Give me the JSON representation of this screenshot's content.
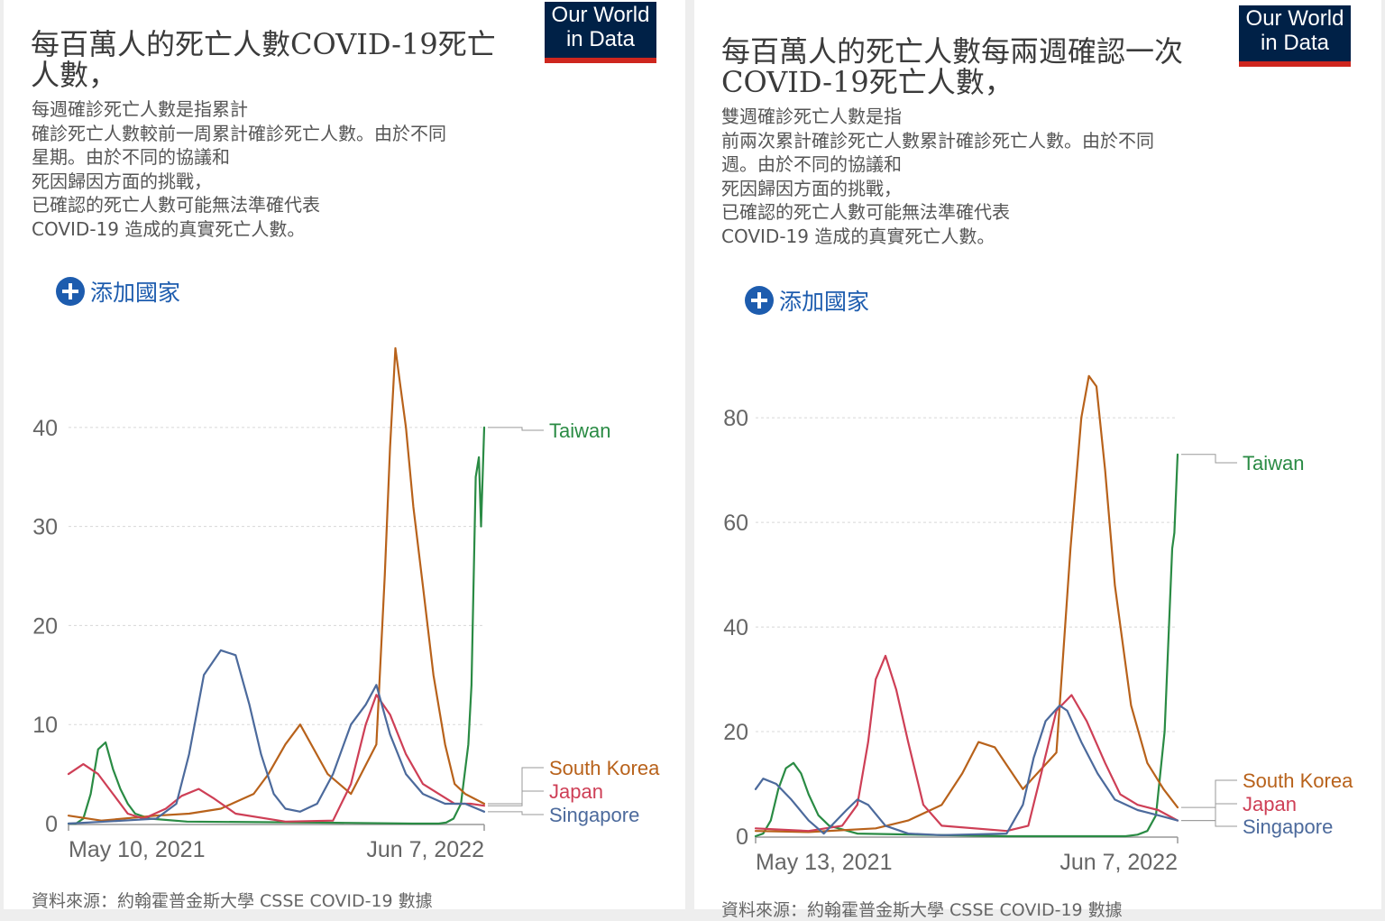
{
  "left": {
    "logo": [
      "Our World",
      "in Data"
    ],
    "title_lines": [
      "每百萬人的死亡人數COVID-19死亡",
      "人數，"
    ],
    "subtitle_lines": [
      "每週確診死亡人數是指累計",
      "確診死亡人數較前一周累計確診死亡人數。由於不同",
      "星期。由於不同的協議和",
      "死因歸因方面的挑戰，",
      "已確認的死亡人數可能無法準確代表",
      "COVID-19 造成的真實死亡人數。"
    ],
    "add_country": "添加國家",
    "source": "資料來源：約翰霍普金斯大學 CSSE COVID-19 數據"
  },
  "right": {
    "logo": [
      "Our World",
      "in Data"
    ],
    "title_lines": [
      "每百萬人的死亡人數每兩週確認一次",
      "COVID-19死亡人數，"
    ],
    "subtitle_lines": [
      "雙週確診死亡人數是指",
      "前兩次累計確診死亡人數累計確診死亡人數。由於不同",
      "週。由於不同的協議和",
      "死因歸因方面的挑戰，",
      "已確認的死亡人數可能無法準確代表",
      "COVID-19 造成的真實死亡人數。"
    ],
    "add_country": "添加國家",
    "source": "資料來源：約翰霍普金斯大學 CSSE COVID-19 數據"
  },
  "colors": {
    "Taiwan": "#2a8b44",
    "South Korea": "#b8621b",
    "Japan": "#ce3f56",
    "Singapore": "#4c6a9c",
    "grid": "#d8d8d8",
    "axis_text": "#666666"
  },
  "chart_data": [
    {
      "type": "line",
      "ylim": [
        0,
        49
      ],
      "yticks": [
        0,
        10,
        20,
        30,
        40
      ],
      "xlim": [
        "2021-05-10",
        "2022-06-07"
      ],
      "xtick_labels": [
        "May 10, 2021",
        "Jun 7, 2022"
      ],
      "series": [
        {
          "name": "Taiwan",
          "x": [
            "2021-05-10",
            "2021-05-17",
            "2021-05-24",
            "2021-05-31",
            "2021-06-07",
            "2021-06-14",
            "2021-06-21",
            "2021-06-28",
            "2021-07-05",
            "2021-07-12",
            "2021-07-26",
            "2021-08-30",
            "2021-12-31",
            "2022-03-31",
            "2022-04-25",
            "2022-05-02",
            "2022-05-09",
            "2022-05-16",
            "2022-05-23",
            "2022-05-26",
            "2022-05-30",
            "2022-06-02",
            "2022-06-04",
            "2022-06-07"
          ],
          "y": [
            0,
            0,
            0.5,
            3,
            7.5,
            8.2,
            5.5,
            3.5,
            2,
            1,
            0.5,
            0.2,
            0.1,
            0,
            0,
            0.1,
            0.5,
            2,
            8,
            14,
            35,
            37,
            30,
            40
          ]
        },
        {
          "name": "South Korea",
          "x": [
            "2021-05-10",
            "2021-06-10",
            "2021-08-01",
            "2021-09-01",
            "2021-10-01",
            "2021-11-01",
            "2021-11-15",
            "2021-12-01",
            "2021-12-15",
            "2022-01-10",
            "2022-02-01",
            "2022-02-25",
            "2022-03-05",
            "2022-03-10",
            "2022-03-15",
            "2022-03-20",
            "2022-03-25",
            "2022-04-01",
            "2022-04-10",
            "2022-04-20",
            "2022-05-01",
            "2022-05-10",
            "2022-05-20",
            "2022-06-07"
          ],
          "y": [
            0.8,
            0.3,
            0.8,
            1,
            1.5,
            3,
            5,
            8,
            10,
            5,
            3,
            8,
            25,
            38,
            48,
            44,
            40,
            32,
            24,
            15,
            8,
            4,
            3,
            2
          ]
        },
        {
          "name": "Japan",
          "x": [
            "2021-05-10",
            "2021-05-24",
            "2021-06-07",
            "2021-06-21",
            "2021-07-05",
            "2021-07-20",
            "2021-08-10",
            "2021-08-25",
            "2021-09-10",
            "2021-09-25",
            "2021-10-15",
            "2021-12-01",
            "2022-01-15",
            "2022-02-01",
            "2022-02-15",
            "2022-02-25",
            "2022-03-10",
            "2022-03-25",
            "2022-04-10",
            "2022-04-25",
            "2022-05-10",
            "2022-05-25",
            "2022-06-07"
          ],
          "y": [
            5,
            6,
            5,
            3,
            1,
            0.5,
            1.5,
            2.8,
            3.5,
            2.5,
            1,
            0.2,
            0.3,
            4,
            10,
            13,
            11,
            7,
            4,
            3,
            2,
            2,
            1.8
          ]
        },
        {
          "name": "Singapore",
          "x": [
            "2021-05-10",
            "2021-07-01",
            "2021-08-01",
            "2021-08-20",
            "2021-09-01",
            "2021-09-15",
            "2021-10-01",
            "2021-10-15",
            "2021-10-28",
            "2021-11-08",
            "2021-11-20",
            "2021-12-01",
            "2021-12-15",
            "2021-12-31",
            "2022-01-15",
            "2022-02-01",
            "2022-02-15",
            "2022-02-25",
            "2022-03-10",
            "2022-03-25",
            "2022-04-10",
            "2022-05-01",
            "2022-05-20",
            "2022-06-07"
          ],
          "y": [
            0,
            0.3,
            0.5,
            2,
            7,
            15,
            17.5,
            17,
            12,
            7,
            3,
            1.5,
            1.2,
            2,
            5,
            10,
            12,
            14,
            9,
            5,
            3,
            2,
            2,
            1.2
          ]
        }
      ]
    },
    {
      "type": "line",
      "ylim": [
        0,
        94
      ],
      "yticks": [
        0,
        20,
        40,
        60,
        80
      ],
      "xlim": [
        "2021-05-13",
        "2022-06-07"
      ],
      "xtick_labels": [
        "May 13, 2021",
        "Jun 7, 2022"
      ],
      "series": [
        {
          "name": "Taiwan",
          "x": [
            "2021-05-13",
            "2021-05-20",
            "2021-05-27",
            "2021-06-03",
            "2021-06-10",
            "2021-06-17",
            "2021-06-24",
            "2021-07-01",
            "2021-07-10",
            "2021-07-20",
            "2021-08-15",
            "2021-12-31",
            "2022-04-20",
            "2022-05-01",
            "2022-05-10",
            "2022-05-18",
            "2022-05-26",
            "2022-06-02",
            "2022-06-04",
            "2022-06-07"
          ],
          "y": [
            0,
            0.5,
            3,
            9,
            13,
            14,
            12,
            8,
            4,
            2,
            0.5,
            0,
            0,
            0.3,
            1,
            4,
            20,
            55,
            58,
            73
          ]
        },
        {
          "name": "South Korea",
          "x": [
            "2021-05-13",
            "2021-07-01",
            "2021-09-01",
            "2021-10-01",
            "2021-11-01",
            "2021-11-20",
            "2021-12-05",
            "2021-12-20",
            "2022-01-15",
            "2022-02-15",
            "2022-02-28",
            "2022-03-10",
            "2022-03-17",
            "2022-03-24",
            "2022-04-01",
            "2022-04-10",
            "2022-04-25",
            "2022-05-10",
            "2022-05-25",
            "2022-06-07"
          ],
          "y": [
            1,
            0.8,
            1.5,
            3,
            6,
            12,
            18,
            17,
            9,
            16,
            55,
            80,
            88,
            86,
            70,
            48,
            25,
            14,
            9,
            5.5
          ]
        },
        {
          "name": "Japan",
          "x": [
            "2021-05-13",
            "2021-07-01",
            "2021-08-01",
            "2021-08-15",
            "2021-08-25",
            "2021-09-01",
            "2021-09-10",
            "2021-09-20",
            "2021-10-01",
            "2021-10-15",
            "2021-11-01",
            "2021-12-31",
            "2022-01-20",
            "2022-02-01",
            "2022-02-15",
            "2022-03-01",
            "2022-03-15",
            "2022-04-01",
            "2022-04-15",
            "2022-05-01",
            "2022-05-20",
            "2022-06-07"
          ],
          "y": [
            1.5,
            1,
            2,
            6,
            18,
            30,
            34.5,
            28,
            18,
            6,
            2,
            1,
            2,
            12,
            24,
            27,
            22,
            14,
            8,
            6,
            5,
            3
          ]
        },
        {
          "name": "Singapore",
          "x": [
            "2021-05-13",
            "2021-05-20",
            "2021-06-01",
            "2021-06-15",
            "2021-07-01",
            "2021-07-15",
            "2021-08-05",
            "2021-08-15",
            "2021-08-25",
            "2021-09-10",
            "2021-10-01",
            "2021-11-01",
            "2021-12-31",
            "2022-01-15",
            "2022-01-25",
            "2022-02-05",
            "2022-02-18",
            "2022-02-25",
            "2022-03-10",
            "2022-03-25",
            "2022-04-10",
            "2022-05-01",
            "2022-05-20",
            "2022-06-07"
          ],
          "y": [
            9,
            11,
            10,
            7,
            3,
            0.5,
            5,
            7,
            6,
            2,
            0.5,
            0.2,
            0.5,
            6,
            15,
            22,
            25,
            24,
            18,
            12,
            7,
            5,
            4,
            3
          ]
        }
      ]
    }
  ]
}
